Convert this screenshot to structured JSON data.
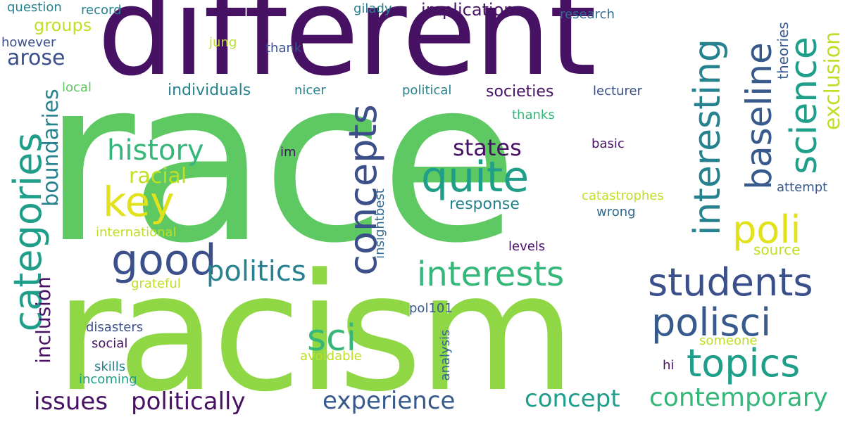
{
  "palette": {
    "dark_purple": "#471164",
    "indigo": "#3b4f8a",
    "slate_blue": "#38598c",
    "blue": "#31688e",
    "teal": "#26828e",
    "sea_green": "#1f9e89",
    "green": "#35b779",
    "lime": "#5ec962",
    "yellow_green": "#8fd744",
    "pale_green": "#bddf26",
    "yellow": "#e1e21b"
  },
  "words": [
    {
      "text": "race"
    },
    {
      "text": "racism"
    },
    {
      "text": "different"
    },
    {
      "text": "categories"
    },
    {
      "text": "concepts"
    },
    {
      "text": "interesting"
    },
    {
      "text": "baseline"
    },
    {
      "text": "science"
    },
    {
      "text": "exclusion"
    },
    {
      "text": "students"
    },
    {
      "text": "polisci"
    },
    {
      "text": "topics"
    },
    {
      "text": "poli"
    },
    {
      "text": "quite"
    },
    {
      "text": "good"
    },
    {
      "text": "key"
    },
    {
      "text": "history"
    },
    {
      "text": "interests"
    },
    {
      "text": "politics"
    },
    {
      "text": "sci"
    },
    {
      "text": "contemporary"
    },
    {
      "text": "experience"
    },
    {
      "text": "concept"
    },
    {
      "text": "politically"
    },
    {
      "text": "issues"
    },
    {
      "text": "inclusion"
    },
    {
      "text": "boundaries"
    },
    {
      "text": "racial"
    },
    {
      "text": "states"
    },
    {
      "text": "response"
    },
    {
      "text": "arose"
    },
    {
      "text": "groups"
    },
    {
      "text": "implications"
    },
    {
      "text": "societies"
    },
    {
      "text": "individuals"
    },
    {
      "text": "question"
    },
    {
      "text": "record"
    },
    {
      "text": "gilady"
    },
    {
      "text": "research"
    },
    {
      "text": "however"
    },
    {
      "text": "jung"
    },
    {
      "text": "thank"
    },
    {
      "text": "local"
    },
    {
      "text": "nicer"
    },
    {
      "text": "political"
    },
    {
      "text": "lecturer"
    },
    {
      "text": "theories"
    },
    {
      "text": "thanks"
    },
    {
      "text": "basic"
    },
    {
      "text": "im"
    },
    {
      "text": "catastrophes"
    },
    {
      "text": "attempt"
    },
    {
      "text": "wrong"
    },
    {
      "text": "international"
    },
    {
      "text": "insightbest"
    },
    {
      "text": "levels"
    },
    {
      "text": "source"
    },
    {
      "text": "grateful"
    },
    {
      "text": "pol101"
    },
    {
      "text": "disasters"
    },
    {
      "text": "social"
    },
    {
      "text": "analysis"
    },
    {
      "text": "someone"
    },
    {
      "text": "avoidable"
    },
    {
      "text": "skills"
    },
    {
      "text": "incoming"
    },
    {
      "text": "hi"
    }
  ]
}
